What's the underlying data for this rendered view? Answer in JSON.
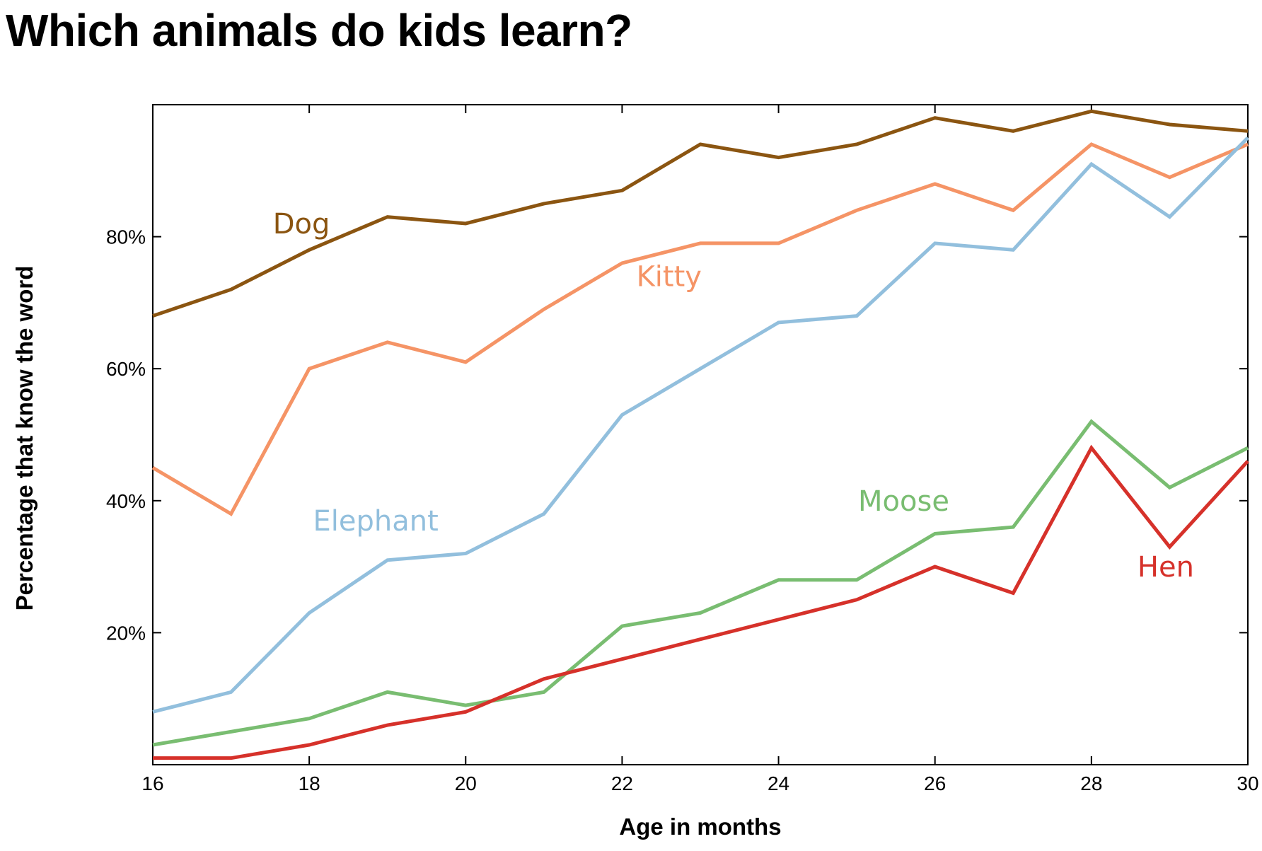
{
  "chart_data": {
    "type": "line",
    "title": "Which animals do kids learn?",
    "xlabel": "Age in months",
    "ylabel": "Percentage that know the word",
    "xlim": [
      16,
      30
    ],
    "ylim": [
      0,
      100
    ],
    "x": [
      16,
      17,
      18,
      19,
      20,
      21,
      22,
      23,
      24,
      25,
      26,
      27,
      28,
      29,
      30
    ],
    "x_ticks": [
      {
        "value": 16,
        "label": "16"
      },
      {
        "value": 18,
        "label": "18"
      },
      {
        "value": 20,
        "label": "20"
      },
      {
        "value": 22,
        "label": "22"
      },
      {
        "value": 24,
        "label": "24"
      },
      {
        "value": 26,
        "label": "26"
      },
      {
        "value": 28,
        "label": "28"
      },
      {
        "value": 30,
        "label": "30"
      }
    ],
    "y_ticks": [
      {
        "value": 20,
        "label": "20%"
      },
      {
        "value": 40,
        "label": "40%"
      },
      {
        "value": 60,
        "label": "60%"
      },
      {
        "value": 80,
        "label": "80%"
      }
    ],
    "grid": false,
    "legend": "inline labels",
    "series": [
      {
        "name": "Dog",
        "color": "#8B5511",
        "values": [
          68,
          72,
          78,
          83,
          82,
          85,
          87,
          94,
          92,
          94,
          98,
          96,
          99,
          97,
          96
        ],
        "label_at": {
          "x": 17.9,
          "y": 80.5
        }
      },
      {
        "name": "Kitty",
        "color": "#F59466",
        "values": [
          45,
          38,
          60,
          64,
          61,
          69,
          76,
          79,
          79,
          84,
          88,
          84,
          94,
          89,
          94
        ],
        "label_at": {
          "x": 22.6,
          "y": 72.5
        }
      },
      {
        "name": "Elephant",
        "color": "#92BFDD",
        "values": [
          8,
          11,
          23,
          31,
          32,
          38,
          53,
          60,
          67,
          68,
          79,
          78,
          91,
          83,
          95
        ],
        "label_at": {
          "x": 18.85,
          "y": 35.5
        }
      },
      {
        "name": "Moose",
        "color": "#79BD71",
        "values": [
          3,
          5,
          7,
          11,
          9,
          11,
          21,
          23,
          28,
          28,
          35,
          36,
          52,
          42,
          48
        ],
        "label_at": {
          "x": 25.6,
          "y": 38.5
        }
      },
      {
        "name": "Hen",
        "color": "#D6312A",
        "values": [
          1,
          1,
          3,
          6,
          8,
          13,
          16,
          19,
          22,
          25,
          30,
          26,
          48,
          33,
          46
        ],
        "label_at": {
          "x": 28.95,
          "y": 28.5
        }
      }
    ]
  }
}
